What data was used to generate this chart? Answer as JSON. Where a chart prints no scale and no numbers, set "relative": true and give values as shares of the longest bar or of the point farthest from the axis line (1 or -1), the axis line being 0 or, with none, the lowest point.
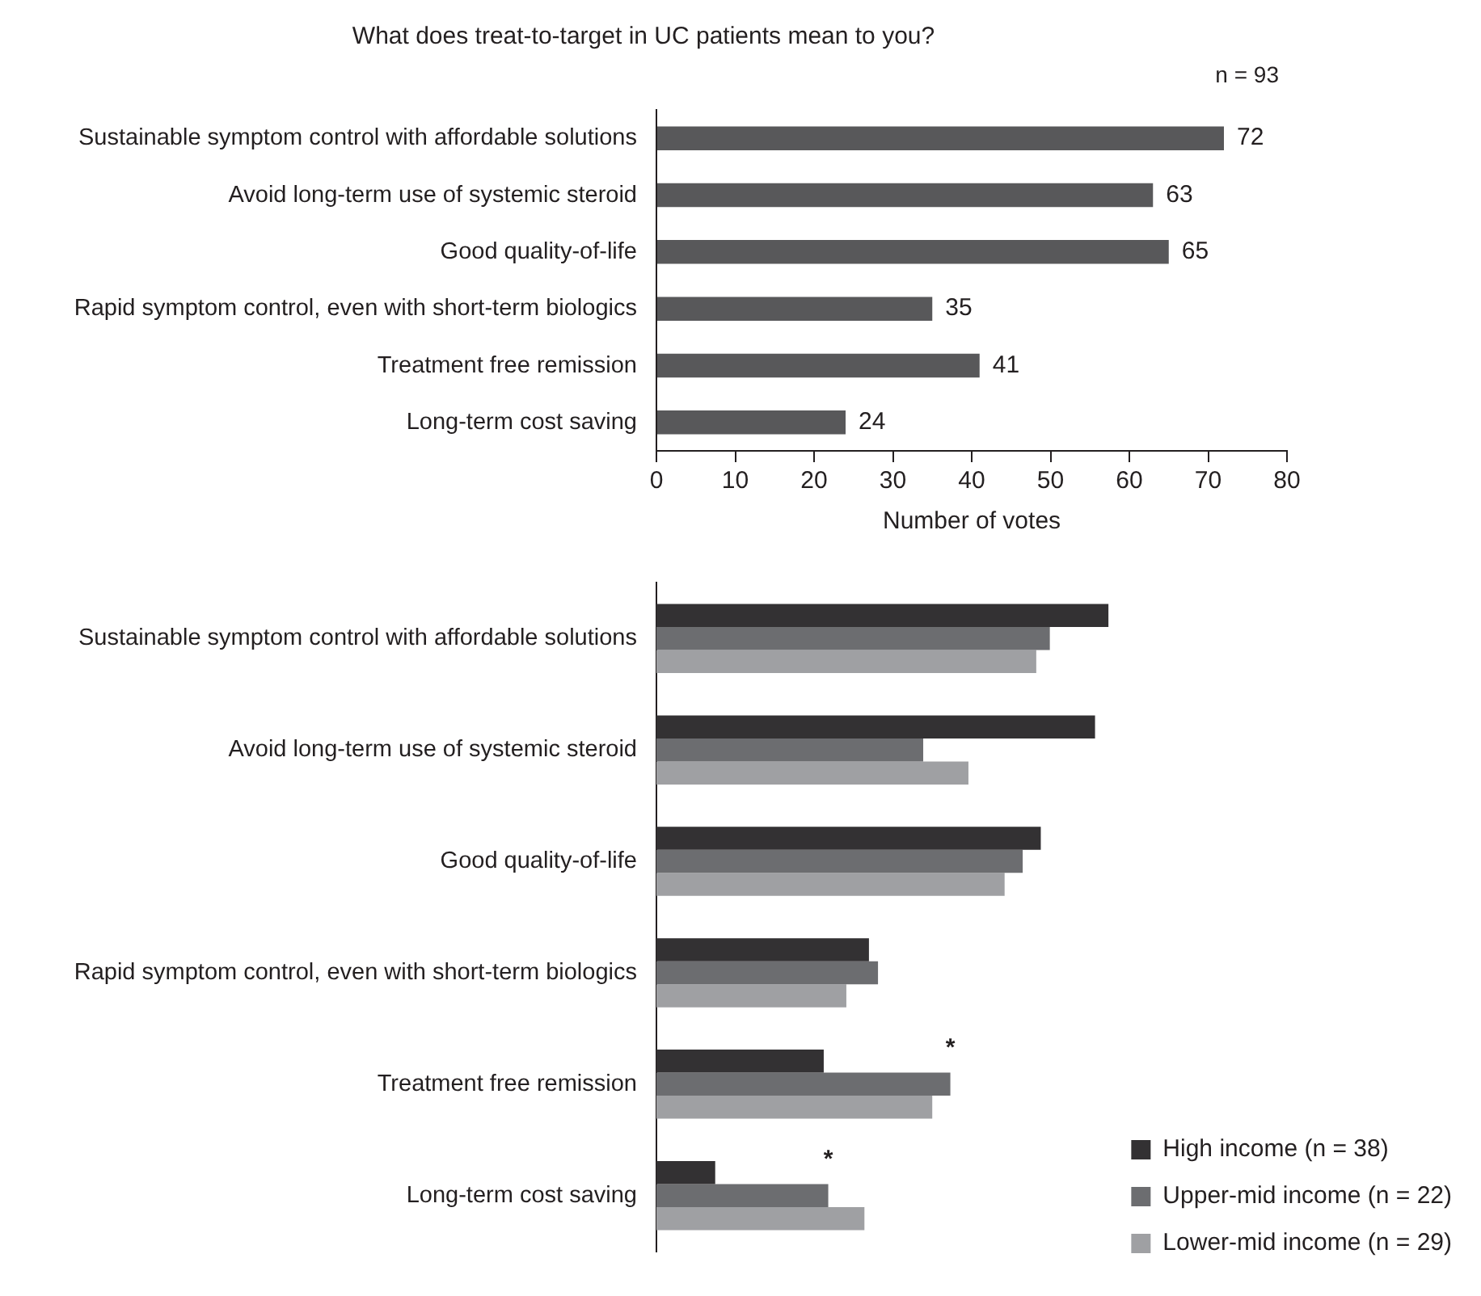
{
  "chart_data": [
    {
      "type": "bar",
      "orientation": "horizontal",
      "title": "What does treat-to-target in UC patients mean to you?",
      "xlabel": "Number of votes",
      "categories": [
        "Sustainable symptom control with affordable solutions",
        "Avoid long-term use of systemic steroid",
        "Good quality-of-life",
        "Rapid symptom control, even with short-term biologics",
        "Treatment free remission",
        "Long-term cost saving"
      ],
      "values": [
        72,
        63,
        65,
        35,
        41,
        24
      ],
      "color": "#58585a",
      "data_labels": true,
      "xlim": [
        0,
        80
      ],
      "xticks": [
        0,
        10,
        20,
        30,
        40,
        50,
        60,
        70,
        80
      ],
      "annotations": [
        "n = 93"
      ]
    },
    {
      "type": "bar",
      "orientation": "horizontal",
      "relative": true,
      "legend": "bottom right",
      "categories": [
        "Sustainable symptom control with affordable solutions",
        "Avoid long-term use of systemic steroid",
        "Good quality-of-life",
        "Rapid symptom control, even with short-term biologics",
        "Treatment free remission",
        "Long-term cost saving"
      ],
      "series": [
        {
          "name": "High income (n = 38)",
          "color": "#333133",
          "values": [
            1,
            0.97,
            0.85,
            0.47,
            0.37,
            0.13
          ]
        },
        {
          "name": "Upper-mid income (n = 22)",
          "color": "#6c6d70",
          "values": [
            0.87,
            0.59,
            0.81,
            0.49,
            0.65,
            0.38
          ]
        },
        {
          "name": "Lower-mid income (n = 29)",
          "color": "#9fa0a3",
          "values": [
            0.84,
            0.69,
            0.77,
            0.42,
            0.61,
            0.46
          ]
        }
      ],
      "annotations": [
        {
          "text": "*",
          "x": 0.65,
          "y": "Treatment free remission"
        },
        {
          "text": "*",
          "x": 0.38,
          "y": "Long-term cost saving"
        }
      ]
    }
  ]
}
